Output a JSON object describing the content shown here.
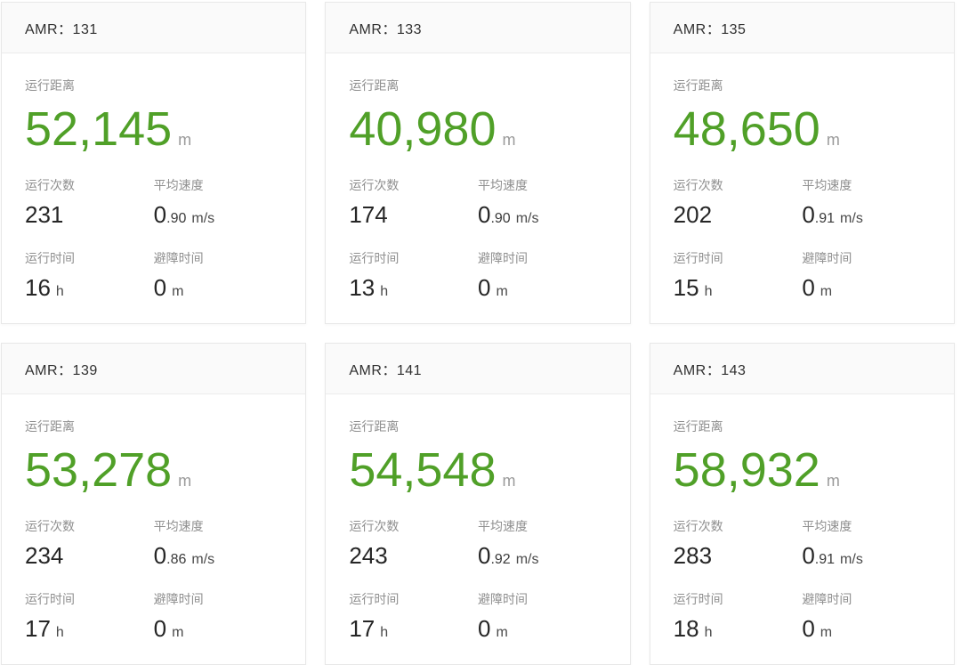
{
  "theme": {
    "accent_green": "#50a028",
    "label_gray": "#8f8f8f",
    "value_dark": "#262626",
    "card_border": "#e8e8e8",
    "header_bg": "#fafafa"
  },
  "cards": [
    {
      "title": "AMR：131",
      "distance": {
        "label": "运行距离",
        "value": "52,145",
        "unit": "m"
      },
      "stats": [
        {
          "label": "运行次数",
          "value": "231",
          "decimal": "",
          "unit": ""
        },
        {
          "label": "平均速度",
          "value": "0",
          "decimal": ".90",
          "unit": "m/s"
        },
        {
          "label": "运行时间",
          "value": "16",
          "decimal": "",
          "unit": "h"
        },
        {
          "label": "避障时间",
          "value": "0",
          "decimal": "",
          "unit": "m"
        }
      ]
    },
    {
      "title": "AMR：133",
      "distance": {
        "label": "运行距离",
        "value": "40,980",
        "unit": "m"
      },
      "stats": [
        {
          "label": "运行次数",
          "value": "174",
          "decimal": "",
          "unit": ""
        },
        {
          "label": "平均速度",
          "value": "0",
          "decimal": ".90",
          "unit": "m/s"
        },
        {
          "label": "运行时间",
          "value": "13",
          "decimal": "",
          "unit": "h"
        },
        {
          "label": "避障时间",
          "value": "0",
          "decimal": "",
          "unit": "m"
        }
      ]
    },
    {
      "title": "AMR：135",
      "distance": {
        "label": "运行距离",
        "value": "48,650",
        "unit": "m"
      },
      "stats": [
        {
          "label": "运行次数",
          "value": "202",
          "decimal": "",
          "unit": ""
        },
        {
          "label": "平均速度",
          "value": "0",
          "decimal": ".91",
          "unit": "m/s"
        },
        {
          "label": "运行时间",
          "value": "15",
          "decimal": "",
          "unit": "h"
        },
        {
          "label": "避障时间",
          "value": "0",
          "decimal": "",
          "unit": "m"
        }
      ]
    },
    {
      "title": "AMR：139",
      "distance": {
        "label": "运行距离",
        "value": "53,278",
        "unit": "m"
      },
      "stats": [
        {
          "label": "运行次数",
          "value": "234",
          "decimal": "",
          "unit": ""
        },
        {
          "label": "平均速度",
          "value": "0",
          "decimal": ".86",
          "unit": "m/s"
        },
        {
          "label": "运行时间",
          "value": "17",
          "decimal": "",
          "unit": "h"
        },
        {
          "label": "避障时间",
          "value": "0",
          "decimal": "",
          "unit": "m"
        }
      ]
    },
    {
      "title": "AMR：141",
      "distance": {
        "label": "运行距离",
        "value": "54,548",
        "unit": "m"
      },
      "stats": [
        {
          "label": "运行次数",
          "value": "243",
          "decimal": "",
          "unit": ""
        },
        {
          "label": "平均速度",
          "value": "0",
          "decimal": ".92",
          "unit": "m/s"
        },
        {
          "label": "运行时间",
          "value": "17",
          "decimal": "",
          "unit": "h"
        },
        {
          "label": "避障时间",
          "value": "0",
          "decimal": "",
          "unit": "m"
        }
      ]
    },
    {
      "title": "AMR：143",
      "distance": {
        "label": "运行距离",
        "value": "58,932",
        "unit": "m"
      },
      "stats": [
        {
          "label": "运行次数",
          "value": "283",
          "decimal": "",
          "unit": ""
        },
        {
          "label": "平均速度",
          "value": "0",
          "decimal": ".91",
          "unit": "m/s"
        },
        {
          "label": "运行时间",
          "value": "18",
          "decimal": "",
          "unit": "h"
        },
        {
          "label": "避障时间",
          "value": "0",
          "decimal": "",
          "unit": "m"
        }
      ]
    }
  ]
}
